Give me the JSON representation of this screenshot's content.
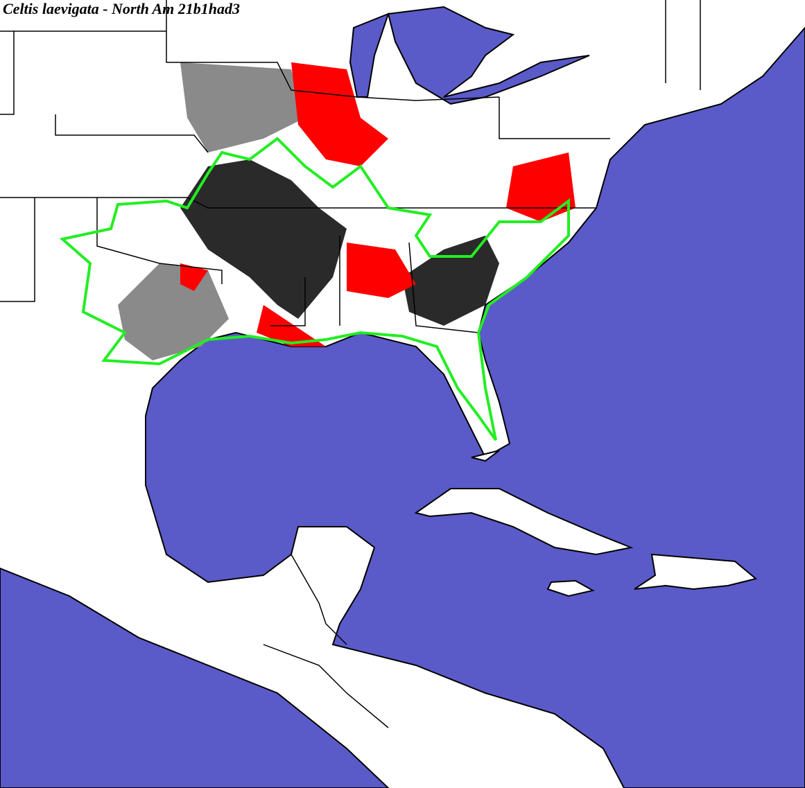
{
  "header": {
    "title": "Celtis laevigata - North Am 21b1had3"
  }
}
